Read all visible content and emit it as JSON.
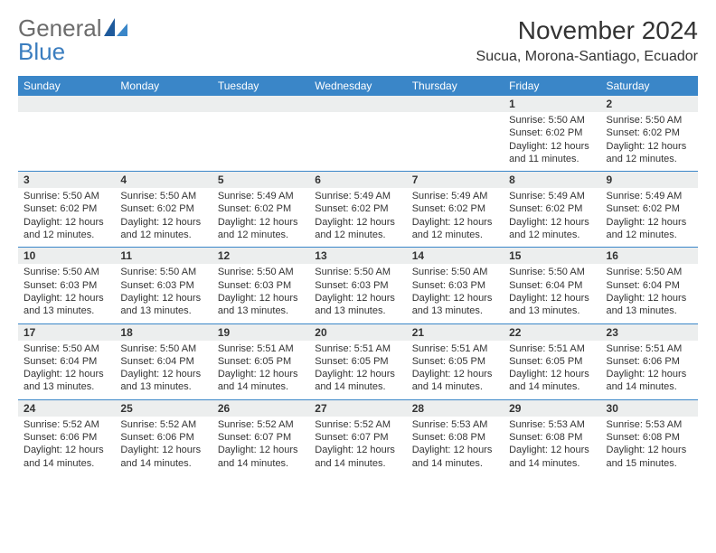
{
  "brand": {
    "text1": "General",
    "text2": "Blue"
  },
  "title": "November 2024",
  "location": "Sucua, Morona-Santiago, Ecuador",
  "colors": {
    "header_bg": "#3a86c8",
    "header_fg": "#ffffff",
    "daynum_bg": "#eceeee",
    "border": "#3a86c8",
    "text": "#333333",
    "logo_gray": "#6c6c6c",
    "logo_blue": "#3a7dbf"
  },
  "day_headers": [
    "Sunday",
    "Monday",
    "Tuesday",
    "Wednesday",
    "Thursday",
    "Friday",
    "Saturday"
  ],
  "weeks": [
    [
      null,
      null,
      null,
      null,
      null,
      {
        "num": "1",
        "sunrise": "Sunrise: 5:50 AM",
        "sunset": "Sunset: 6:02 PM",
        "day1": "Daylight: 12 hours",
        "day2": "and 11 minutes."
      },
      {
        "num": "2",
        "sunrise": "Sunrise: 5:50 AM",
        "sunset": "Sunset: 6:02 PM",
        "day1": "Daylight: 12 hours",
        "day2": "and 12 minutes."
      }
    ],
    [
      {
        "num": "3",
        "sunrise": "Sunrise: 5:50 AM",
        "sunset": "Sunset: 6:02 PM",
        "day1": "Daylight: 12 hours",
        "day2": "and 12 minutes."
      },
      {
        "num": "4",
        "sunrise": "Sunrise: 5:50 AM",
        "sunset": "Sunset: 6:02 PM",
        "day1": "Daylight: 12 hours",
        "day2": "and 12 minutes."
      },
      {
        "num": "5",
        "sunrise": "Sunrise: 5:49 AM",
        "sunset": "Sunset: 6:02 PM",
        "day1": "Daylight: 12 hours",
        "day2": "and 12 minutes."
      },
      {
        "num": "6",
        "sunrise": "Sunrise: 5:49 AM",
        "sunset": "Sunset: 6:02 PM",
        "day1": "Daylight: 12 hours",
        "day2": "and 12 minutes."
      },
      {
        "num": "7",
        "sunrise": "Sunrise: 5:49 AM",
        "sunset": "Sunset: 6:02 PM",
        "day1": "Daylight: 12 hours",
        "day2": "and 12 minutes."
      },
      {
        "num": "8",
        "sunrise": "Sunrise: 5:49 AM",
        "sunset": "Sunset: 6:02 PM",
        "day1": "Daylight: 12 hours",
        "day2": "and 12 minutes."
      },
      {
        "num": "9",
        "sunrise": "Sunrise: 5:49 AM",
        "sunset": "Sunset: 6:02 PM",
        "day1": "Daylight: 12 hours",
        "day2": "and 12 minutes."
      }
    ],
    [
      {
        "num": "10",
        "sunrise": "Sunrise: 5:50 AM",
        "sunset": "Sunset: 6:03 PM",
        "day1": "Daylight: 12 hours",
        "day2": "and 13 minutes."
      },
      {
        "num": "11",
        "sunrise": "Sunrise: 5:50 AM",
        "sunset": "Sunset: 6:03 PM",
        "day1": "Daylight: 12 hours",
        "day2": "and 13 minutes."
      },
      {
        "num": "12",
        "sunrise": "Sunrise: 5:50 AM",
        "sunset": "Sunset: 6:03 PM",
        "day1": "Daylight: 12 hours",
        "day2": "and 13 minutes."
      },
      {
        "num": "13",
        "sunrise": "Sunrise: 5:50 AM",
        "sunset": "Sunset: 6:03 PM",
        "day1": "Daylight: 12 hours",
        "day2": "and 13 minutes."
      },
      {
        "num": "14",
        "sunrise": "Sunrise: 5:50 AM",
        "sunset": "Sunset: 6:03 PM",
        "day1": "Daylight: 12 hours",
        "day2": "and 13 minutes."
      },
      {
        "num": "15",
        "sunrise": "Sunrise: 5:50 AM",
        "sunset": "Sunset: 6:04 PM",
        "day1": "Daylight: 12 hours",
        "day2": "and 13 minutes."
      },
      {
        "num": "16",
        "sunrise": "Sunrise: 5:50 AM",
        "sunset": "Sunset: 6:04 PM",
        "day1": "Daylight: 12 hours",
        "day2": "and 13 minutes."
      }
    ],
    [
      {
        "num": "17",
        "sunrise": "Sunrise: 5:50 AM",
        "sunset": "Sunset: 6:04 PM",
        "day1": "Daylight: 12 hours",
        "day2": "and 13 minutes."
      },
      {
        "num": "18",
        "sunrise": "Sunrise: 5:50 AM",
        "sunset": "Sunset: 6:04 PM",
        "day1": "Daylight: 12 hours",
        "day2": "and 13 minutes."
      },
      {
        "num": "19",
        "sunrise": "Sunrise: 5:51 AM",
        "sunset": "Sunset: 6:05 PM",
        "day1": "Daylight: 12 hours",
        "day2": "and 14 minutes."
      },
      {
        "num": "20",
        "sunrise": "Sunrise: 5:51 AM",
        "sunset": "Sunset: 6:05 PM",
        "day1": "Daylight: 12 hours",
        "day2": "and 14 minutes."
      },
      {
        "num": "21",
        "sunrise": "Sunrise: 5:51 AM",
        "sunset": "Sunset: 6:05 PM",
        "day1": "Daylight: 12 hours",
        "day2": "and 14 minutes."
      },
      {
        "num": "22",
        "sunrise": "Sunrise: 5:51 AM",
        "sunset": "Sunset: 6:05 PM",
        "day1": "Daylight: 12 hours",
        "day2": "and 14 minutes."
      },
      {
        "num": "23",
        "sunrise": "Sunrise: 5:51 AM",
        "sunset": "Sunset: 6:06 PM",
        "day1": "Daylight: 12 hours",
        "day2": "and 14 minutes."
      }
    ],
    [
      {
        "num": "24",
        "sunrise": "Sunrise: 5:52 AM",
        "sunset": "Sunset: 6:06 PM",
        "day1": "Daylight: 12 hours",
        "day2": "and 14 minutes."
      },
      {
        "num": "25",
        "sunrise": "Sunrise: 5:52 AM",
        "sunset": "Sunset: 6:06 PM",
        "day1": "Daylight: 12 hours",
        "day2": "and 14 minutes."
      },
      {
        "num": "26",
        "sunrise": "Sunrise: 5:52 AM",
        "sunset": "Sunset: 6:07 PM",
        "day1": "Daylight: 12 hours",
        "day2": "and 14 minutes."
      },
      {
        "num": "27",
        "sunrise": "Sunrise: 5:52 AM",
        "sunset": "Sunset: 6:07 PM",
        "day1": "Daylight: 12 hours",
        "day2": "and 14 minutes."
      },
      {
        "num": "28",
        "sunrise": "Sunrise: 5:53 AM",
        "sunset": "Sunset: 6:08 PM",
        "day1": "Daylight: 12 hours",
        "day2": "and 14 minutes."
      },
      {
        "num": "29",
        "sunrise": "Sunrise: 5:53 AM",
        "sunset": "Sunset: 6:08 PM",
        "day1": "Daylight: 12 hours",
        "day2": "and 14 minutes."
      },
      {
        "num": "30",
        "sunrise": "Sunrise: 5:53 AM",
        "sunset": "Sunset: 6:08 PM",
        "day1": "Daylight: 12 hours",
        "day2": "and 15 minutes."
      }
    ]
  ]
}
